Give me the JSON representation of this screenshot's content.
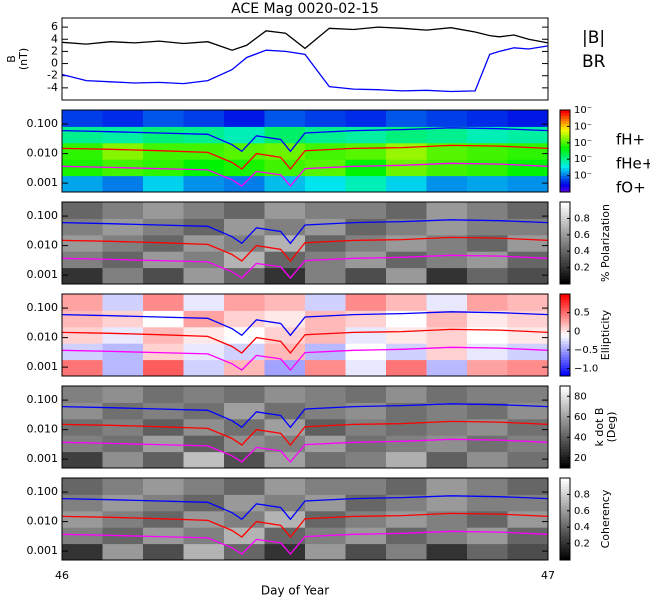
{
  "chart_data": [
    {
      "type": "line",
      "title": "ACE Mag 0020-02-15",
      "ylabel": [
        "B",
        "(nT)"
      ],
      "ylim": [
        -6,
        7.5
      ],
      "yticks": [
        -4,
        -2,
        0,
        2,
        4,
        6
      ],
      "xlim": [
        46,
        47
      ],
      "x": [
        46,
        46.05,
        46.1,
        46.15,
        46.2,
        46.25,
        46.3,
        46.35,
        46.38,
        46.42,
        46.46,
        46.5,
        46.55,
        46.6,
        46.65,
        46.7,
        46.75,
        46.8,
        46.85,
        46.88,
        46.9,
        46.93,
        46.96,
        47
      ],
      "series": [
        {
          "name": "|B|",
          "color": "#000000",
          "values": [
            3.5,
            3.2,
            3.6,
            3.4,
            3.7,
            3.3,
            3.6,
            2.2,
            3.0,
            5.4,
            5.0,
            2.5,
            5.8,
            5.6,
            6.0,
            5.8,
            5.5,
            5.9,
            5.2,
            4.6,
            4.4,
            4.7,
            4.0,
            3.4
          ]
        },
        {
          "name": "BR",
          "color": "#0000ff",
          "values": [
            -1.8,
            -2.8,
            -3.0,
            -3.2,
            -3.1,
            -3.3,
            -2.8,
            -1.0,
            1.0,
            2.2,
            2.0,
            1.5,
            -3.8,
            -4.2,
            -4.3,
            -4.5,
            -4.4,
            -4.6,
            -4.5,
            1.5,
            2.0,
            2.6,
            2.4,
            2.9
          ]
        }
      ]
    },
    {
      "type": "spectrogram",
      "colormap": "rainbow",
      "ylim": [
        0.0005,
        0.3
      ],
      "log_y": true,
      "yticks": [
        {
          "value": 0.001,
          "label": "0.001"
        },
        {
          "value": 0.01,
          "label": "0.010"
        },
        {
          "value": 0.1,
          "label": "0.100"
        }
      ],
      "xlim": [
        46,
        47
      ],
      "zlim": [
        -6,
        -1
      ],
      "zticks": [
        {
          "value": -5,
          "label": "10⁻"
        },
        {
          "value": -4,
          "label": "10⁻"
        },
        {
          "value": -3,
          "label": "10⁻"
        },
        {
          "value": -2,
          "label": "10⁻"
        },
        {
          "value": -1,
          "label": "10⁻"
        }
      ],
      "z": [
        [
          -4.8,
          -5.0,
          -4.6,
          -4.9,
          -5.0,
          -4.7,
          -4.5,
          -4.2,
          -4.6,
          -4.9,
          -4.8,
          -4.9
        ],
        [
          -3.2,
          -3.0,
          -3.1,
          -3.3,
          -3.2,
          -3.0,
          -2.9,
          -3.3,
          -2.8,
          -3.0,
          -3.1,
          -3.3
        ],
        [
          -3.1,
          -2.7,
          -3.0,
          -3.0,
          -2.9,
          -2.8,
          -3.0,
          -2.9,
          -2.6,
          -2.9,
          -3.0,
          -3.1
        ],
        [
          -4.0,
          -4.1,
          -3.9,
          -4.0,
          -4.2,
          -3.8,
          -4.0,
          -4.1,
          -3.9,
          -4.0,
          -4.2,
          -4.1
        ],
        [
          -5.3,
          -5.4,
          -5.2,
          -5.3,
          -5.5,
          -5.2,
          -5.3,
          -5.4,
          -5.2,
          -5.3,
          -5.4,
          -5.5
        ]
      ],
      "x": [
        46,
        46.1,
        46.2,
        46.3,
        46.35,
        46.37,
        46.4,
        46.45,
        46.47,
        46.5,
        46.6,
        46.7,
        46.8,
        46.9,
        47
      ],
      "series": [
        {
          "name": "fH+",
          "color": "#0000ff",
          "values": [
            0.06,
            0.055,
            0.05,
            0.045,
            0.02,
            0.012,
            0.04,
            0.03,
            0.012,
            0.05,
            0.06,
            0.065,
            0.075,
            0.07,
            0.06
          ]
        },
        {
          "name": "fHe+",
          "color": "#ff0000",
          "values": [
            0.015,
            0.014,
            0.0125,
            0.011,
            0.005,
            0.003,
            0.01,
            0.0075,
            0.003,
            0.0125,
            0.015,
            0.016,
            0.019,
            0.018,
            0.015
          ]
        },
        {
          "name": "fO+",
          "color": "#ff00ff",
          "values": [
            0.0037,
            0.0034,
            0.0031,
            0.0028,
            0.0013,
            0.0008,
            0.0025,
            0.0019,
            0.0008,
            0.0031,
            0.0037,
            0.004,
            0.0047,
            0.0044,
            0.0037
          ]
        }
      ]
    },
    {
      "type": "spectrogram",
      "colormap": "gray",
      "ylim": [
        0.0005,
        0.3
      ],
      "log_y": true,
      "yticks": [
        {
          "value": 0.001,
          "label": "0.001"
        },
        {
          "value": 0.01,
          "label": "0.010"
        },
        {
          "value": 0.1,
          "label": "0.100"
        }
      ],
      "xlim": [
        46,
        47
      ],
      "zlim": [
        0,
        1
      ],
      "zlabel": "% Polarization",
      "zticks": [
        0.2,
        0.4,
        0.6,
        0.8
      ],
      "z": [
        [
          0.2,
          0.5,
          0.3,
          0.6,
          0.4,
          0.2,
          0.5,
          0.3,
          0.6,
          0.2,
          0.4,
          0.3
        ],
        [
          0.5,
          0.4,
          0.6,
          0.5,
          0.7,
          0.4,
          0.5,
          0.6,
          0.4,
          0.5,
          0.6,
          0.4
        ],
        [
          0.6,
          0.5,
          0.4,
          0.6,
          0.5,
          0.7,
          0.4,
          0.5,
          0.6,
          0.5,
          0.4,
          0.6
        ],
        [
          0.5,
          0.6,
          0.5,
          0.4,
          0.6,
          0.5,
          0.6,
          0.4,
          0.5,
          0.6,
          0.5,
          0.5
        ],
        [
          0.4,
          0.5,
          0.6,
          0.5,
          0.4,
          0.6,
          0.5,
          0.5,
          0.4,
          0.6,
          0.5,
          0.4
        ]
      ],
      "x": [
        46,
        46.1,
        46.2,
        46.3,
        46.35,
        46.37,
        46.4,
        46.45,
        46.47,
        46.5,
        46.6,
        46.7,
        46.8,
        46.9,
        47
      ],
      "series": [
        {
          "name": "fH+",
          "color": "#0000ff",
          "values": [
            0.06,
            0.055,
            0.05,
            0.045,
            0.02,
            0.012,
            0.04,
            0.03,
            0.012,
            0.05,
            0.06,
            0.065,
            0.075,
            0.07,
            0.06
          ]
        },
        {
          "name": "fHe+",
          "color": "#ff0000",
          "values": [
            0.015,
            0.014,
            0.0125,
            0.011,
            0.005,
            0.003,
            0.01,
            0.0075,
            0.003,
            0.0125,
            0.015,
            0.016,
            0.019,
            0.018,
            0.015
          ]
        },
        {
          "name": "fO+",
          "color": "#ff00ff",
          "values": [
            0.0037,
            0.0034,
            0.0031,
            0.0028,
            0.0013,
            0.0008,
            0.0025,
            0.0019,
            0.0008,
            0.0031,
            0.0037,
            0.004,
            0.0047,
            0.0044,
            0.0037
          ]
        }
      ]
    },
    {
      "type": "spectrogram",
      "colormap": "bwr",
      "ylim": [
        0.0005,
        0.3
      ],
      "log_y": true,
      "yticks": [
        {
          "value": 0.001,
          "label": "0.001"
        },
        {
          "value": 0.01,
          "label": "0.010"
        },
        {
          "value": 0.1,
          "label": "0.100"
        }
      ],
      "xlim": [
        46,
        47
      ],
      "zlim": [
        -1.2,
        1
      ],
      "zlabel": "Ellipticity",
      "zticks": [
        {
          "value": -1,
          "label": "−1.0"
        },
        {
          "value": -0.5,
          "label": "−0.5"
        },
        0.0,
        0.5
      ],
      "z": [
        [
          0.5,
          -0.4,
          0.6,
          -0.3,
          0.2,
          -0.5,
          0.4,
          -0.2,
          0.5,
          -0.4,
          0.3,
          0.4
        ],
        [
          -0.3,
          -0.4,
          0.1,
          -0.2,
          -0.3,
          0.2,
          -0.4,
          -0.1,
          -0.3,
          0.1,
          -0.2,
          -0.3
        ],
        [
          0.1,
          -0.2,
          0.2,
          0.0,
          -0.1,
          0.1,
          0.2,
          -0.2,
          0.0,
          0.1,
          -0.1,
          0.0
        ],
        [
          0.2,
          0.1,
          -0.1,
          0.3,
          0.1,
          0.0,
          0.2,
          0.1,
          -0.1,
          0.2,
          0.0,
          0.1
        ],
        [
          0.3,
          -0.3,
          0.4,
          -0.2,
          0.3,
          0.2,
          -0.3,
          0.4,
          0.2,
          -0.2,
          0.3,
          0.2
        ]
      ],
      "x": [
        46,
        46.1,
        46.2,
        46.3,
        46.35,
        46.37,
        46.4,
        46.45,
        46.47,
        46.5,
        46.6,
        46.7,
        46.8,
        46.9,
        47
      ],
      "series": [
        {
          "name": "fH+",
          "color": "#0000ff",
          "values": [
            0.06,
            0.055,
            0.05,
            0.045,
            0.02,
            0.012,
            0.04,
            0.03,
            0.012,
            0.05,
            0.06,
            0.065,
            0.075,
            0.07,
            0.06
          ]
        },
        {
          "name": "fHe+",
          "color": "#ff0000",
          "values": [
            0.015,
            0.014,
            0.0125,
            0.011,
            0.005,
            0.003,
            0.01,
            0.0075,
            0.003,
            0.0125,
            0.015,
            0.016,
            0.019,
            0.018,
            0.015
          ]
        },
        {
          "name": "fO+",
          "color": "#ff00ff",
          "values": [
            0.0037,
            0.0034,
            0.0031,
            0.0028,
            0.0013,
            0.0008,
            0.0025,
            0.0019,
            0.0008,
            0.0031,
            0.0037,
            0.004,
            0.0047,
            0.0044,
            0.0037
          ]
        }
      ]
    },
    {
      "type": "spectrogram",
      "colormap": "gray",
      "ylim": [
        0.0005,
        0.3
      ],
      "log_y": true,
      "yticks": [
        {
          "value": 0.001,
          "label": "0.001"
        },
        {
          "value": 0.01,
          "label": "0.010"
        },
        {
          "value": 0.1,
          "label": "0.100"
        }
      ],
      "xlim": [
        46,
        47
      ],
      "zlim": [
        10,
        90
      ],
      "zlabel": [
        "k dot B",
        "(Deg)"
      ],
      "zticks": [
        20,
        40,
        60,
        80
      ],
      "z": [
        [
          30,
          55,
          40,
          70,
          35,
          60,
          45,
          50,
          65,
          40,
          55,
          45
        ],
        [
          50,
          45,
          60,
          40,
          55,
          50,
          60,
          45,
          50,
          55,
          45,
          50
        ],
        [
          45,
          50,
          40,
          55,
          45,
          60,
          40,
          50,
          45,
          50,
          55,
          45
        ],
        [
          55,
          45,
          50,
          45,
          60,
          45,
          50,
          55,
          45,
          50,
          45,
          55
        ],
        [
          50,
          55,
          45,
          50,
          45,
          55,
          50,
          45,
          55,
          45,
          50,
          50
        ]
      ],
      "x": [
        46,
        46.1,
        46.2,
        46.3,
        46.35,
        46.37,
        46.4,
        46.45,
        46.47,
        46.5,
        46.6,
        46.7,
        46.8,
        46.9,
        47
      ],
      "series": [
        {
          "name": "fH+",
          "color": "#0000ff",
          "values": [
            0.06,
            0.055,
            0.05,
            0.045,
            0.02,
            0.012,
            0.04,
            0.03,
            0.012,
            0.05,
            0.06,
            0.065,
            0.075,
            0.07,
            0.06
          ]
        },
        {
          "name": "fHe+",
          "color": "#ff0000",
          "values": [
            0.015,
            0.014,
            0.0125,
            0.011,
            0.005,
            0.003,
            0.01,
            0.0075,
            0.003,
            0.0125,
            0.015,
            0.016,
            0.019,
            0.018,
            0.015
          ]
        },
        {
          "name": "fO+",
          "color": "#ff00ff",
          "values": [
            0.0037,
            0.0034,
            0.0031,
            0.0028,
            0.0013,
            0.0008,
            0.0025,
            0.0019,
            0.0008,
            0.0031,
            0.0037,
            0.004,
            0.0047,
            0.0044,
            0.0037
          ]
        }
      ]
    },
    {
      "type": "spectrogram",
      "colormap": "gray",
      "ylim": [
        0.0005,
        0.3
      ],
      "log_y": true,
      "yticks": [
        {
          "value": 0.001,
          "label": "0.001"
        },
        {
          "value": 0.01,
          "label": "0.010"
        },
        {
          "value": 0.1,
          "label": "0.100"
        }
      ],
      "xlim": [
        46,
        47
      ],
      "xticks": [
        46,
        47
      ],
      "xlabel": "Day of Year",
      "zlim": [
        0,
        1
      ],
      "zlabel": "Coherency",
      "zticks": [
        0.2,
        0.4,
        0.6,
        0.8
      ],
      "z": [
        [
          0.2,
          0.6,
          0.3,
          0.7,
          0.4,
          0.2,
          0.6,
          0.3,
          0.5,
          0.2,
          0.4,
          0.3
        ],
        [
          0.5,
          0.4,
          0.6,
          0.5,
          0.7,
          0.4,
          0.5,
          0.6,
          0.4,
          0.5,
          0.6,
          0.4
        ],
        [
          0.6,
          0.5,
          0.4,
          0.6,
          0.5,
          0.7,
          0.4,
          0.5,
          0.6,
          0.5,
          0.4,
          0.6
        ],
        [
          0.5,
          0.6,
          0.5,
          0.4,
          0.6,
          0.5,
          0.6,
          0.4,
          0.5,
          0.6,
          0.5,
          0.5
        ],
        [
          0.4,
          0.5,
          0.6,
          0.5,
          0.4,
          0.6,
          0.5,
          0.5,
          0.4,
          0.6,
          0.5,
          0.4
        ]
      ],
      "x": [
        46,
        46.1,
        46.2,
        46.3,
        46.35,
        46.37,
        46.4,
        46.45,
        46.47,
        46.5,
        46.6,
        46.7,
        46.8,
        46.9,
        47
      ],
      "series": [
        {
          "name": "fH+",
          "color": "#0000ff",
          "values": [
            0.06,
            0.055,
            0.05,
            0.045,
            0.02,
            0.012,
            0.04,
            0.03,
            0.012,
            0.05,
            0.06,
            0.065,
            0.075,
            0.07,
            0.06
          ]
        },
        {
          "name": "fHe+",
          "color": "#ff0000",
          "values": [
            0.015,
            0.014,
            0.0125,
            0.011,
            0.005,
            0.003,
            0.01,
            0.0075,
            0.003,
            0.0125,
            0.015,
            0.016,
            0.019,
            0.018,
            0.015
          ]
        },
        {
          "name": "fO+",
          "color": "#ff00ff",
          "values": [
            0.0037,
            0.0034,
            0.0031,
            0.0028,
            0.0013,
            0.0008,
            0.0025,
            0.0019,
            0.0008,
            0.0031,
            0.0037,
            0.004,
            0.0047,
            0.0044,
            0.0037
          ]
        }
      ]
    }
  ]
}
